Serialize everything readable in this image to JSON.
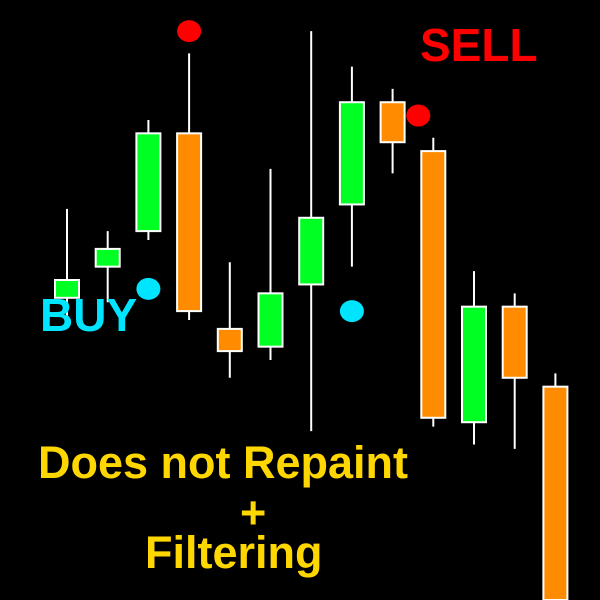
{
  "labels": {
    "sell": "SELL",
    "buy": "BUY",
    "line1": "Does not Repaint",
    "line2": "+",
    "line3": "Filtering"
  },
  "colors": {
    "background": "#000000",
    "bullish": "#00ff22",
    "bearish": "#ff8c00",
    "candle_outline": "#ffffff",
    "wick": "#ffffff",
    "sell_signal": "#ff0000",
    "buy_signal": "#00e5ff",
    "headline": "#ffd700"
  },
  "chart_data": {
    "type": "candlestick",
    "candles": [
      {
        "open": 6.3,
        "high": 8.3,
        "low": 5.9,
        "close": 6.7
      },
      {
        "open": 7.0,
        "high": 7.8,
        "low": 6.2,
        "close": 7.4
      },
      {
        "open": 7.8,
        "high": 10.3,
        "low": 7.6,
        "close": 10.0
      },
      {
        "open": 10.0,
        "high": 11.8,
        "low": 5.8,
        "close": 6.0
      },
      {
        "open": 5.6,
        "high": 7.1,
        "low": 4.5,
        "close": 5.1
      },
      {
        "open": 5.2,
        "high": 9.2,
        "low": 4.9,
        "close": 6.4
      },
      {
        "open": 6.6,
        "high": 12.3,
        "low": 3.3,
        "close": 8.1
      },
      {
        "open": 8.4,
        "high": 11.5,
        "low": 7.0,
        "close": 10.7
      },
      {
        "open": 10.7,
        "high": 11.0,
        "low": 9.1,
        "close": 9.8
      },
      {
        "open": 9.6,
        "high": 9.9,
        "low": 3.4,
        "close": 3.6
      },
      {
        "open": 3.5,
        "high": 6.9,
        "low": 3.0,
        "close": 6.1
      },
      {
        "open": 6.1,
        "high": 6.4,
        "low": 2.9,
        "close": 4.5
      },
      {
        "open": 4.3,
        "high": 4.6,
        "low": -0.5,
        "close": -0.5
      }
    ],
    "signals": [
      {
        "type": "sell",
        "candle": 3,
        "price": 12.3
      },
      {
        "type": "buy",
        "candle": 2,
        "price": 6.5
      },
      {
        "type": "buy",
        "candle": 7,
        "price": 6.0
      },
      {
        "type": "sell",
        "candle": 9,
        "price": 10.4
      }
    ],
    "ylim": [
      -0.5,
      13.0
    ]
  }
}
